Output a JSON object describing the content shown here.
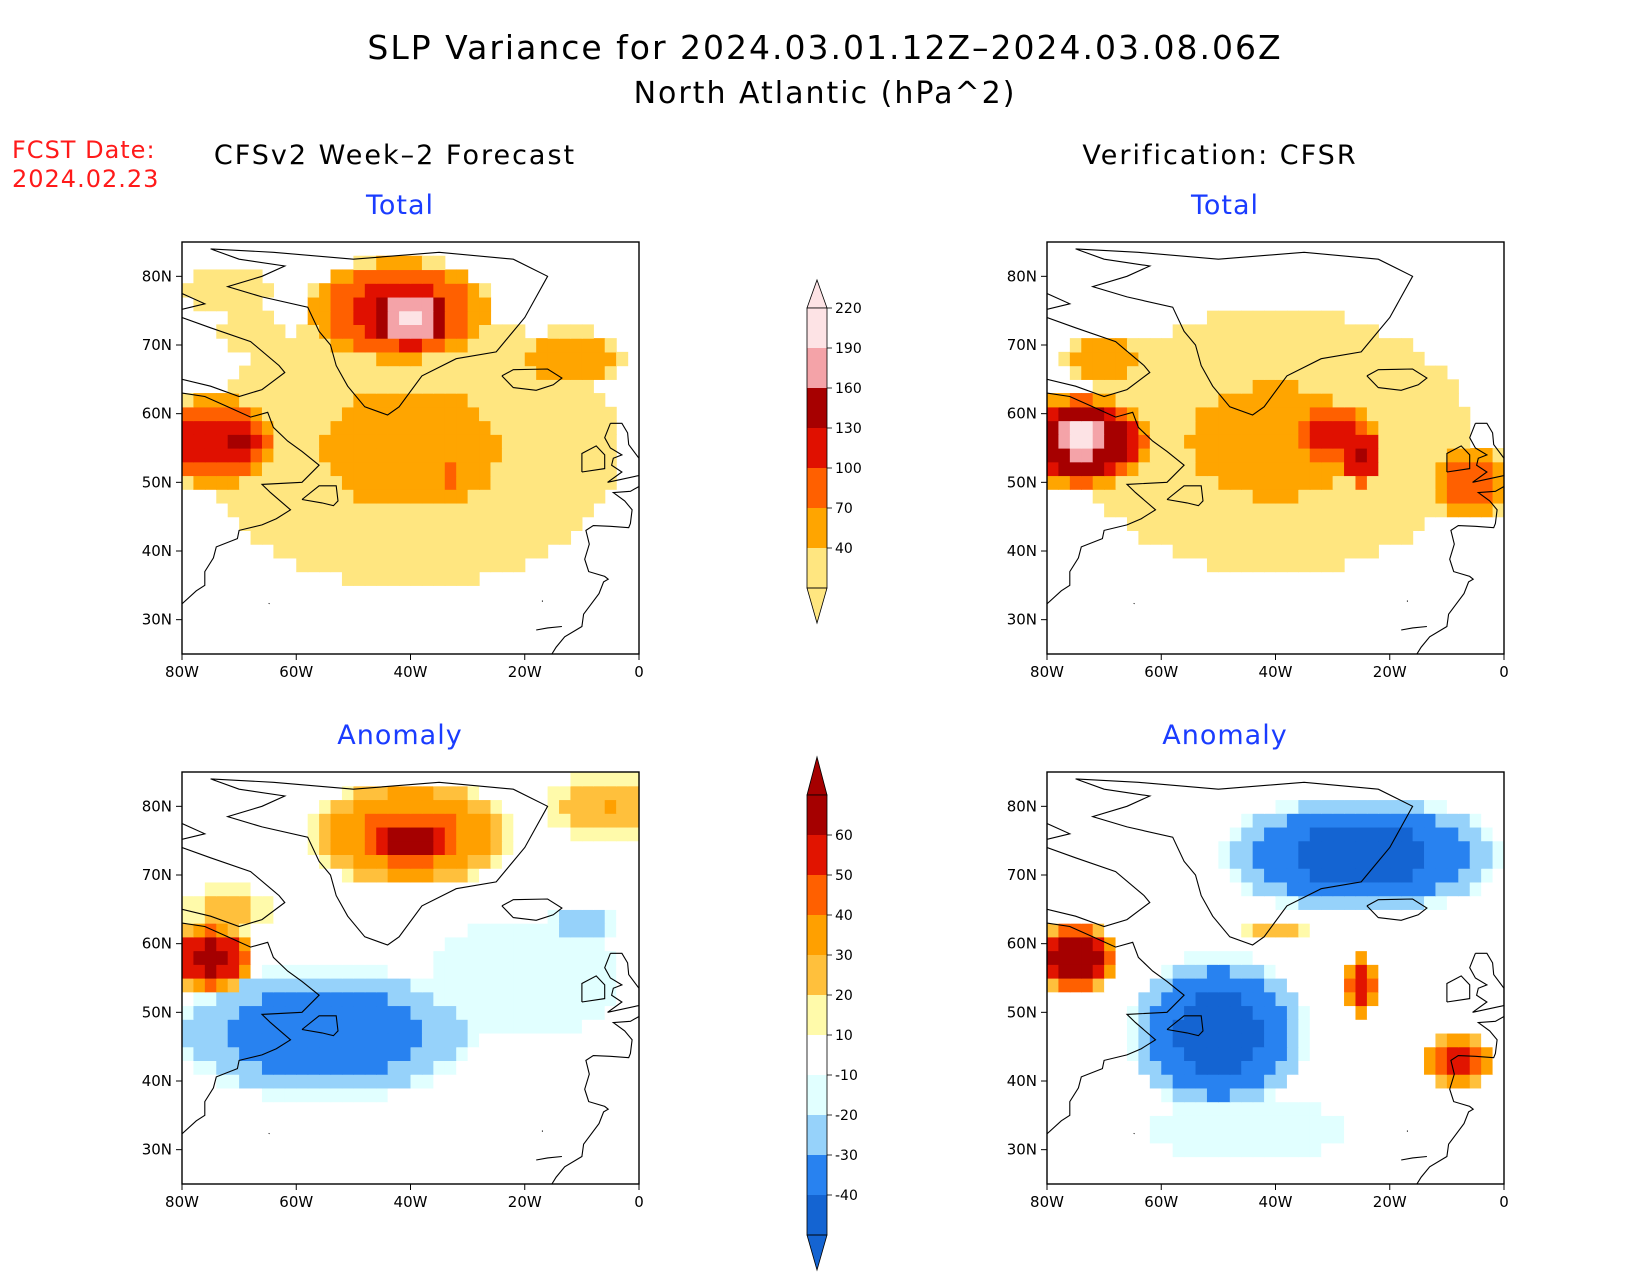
{
  "title": {
    "line1": "SLP Variance for 2024.03.01.12Z–2024.03.08.06Z",
    "line2": "North Atlantic (hPa^2)"
  },
  "fcst_date": {
    "label": "FCST Date:",
    "value": "2024.02.23"
  },
  "columns": {
    "left": "CFSv2 Week–2 Forecast",
    "right": "Verification: CFSR"
  },
  "panels": [
    {
      "id": "fcst-total",
      "title": "Total",
      "scale": "total",
      "blobs": [
        {
          "lon": -40,
          "lat": 55,
          "rx": 42,
          "ry": 23,
          "v": 75
        },
        {
          "lon": -42,
          "lat": 75,
          "rx": 17,
          "ry": 8,
          "v": 150
        },
        {
          "lon": -40,
          "lat": 74,
          "rx": 8,
          "ry": 5,
          "v": 230
        },
        {
          "lon": -74,
          "lat": 56,
          "rx": 12,
          "ry": 7,
          "v": 150
        },
        {
          "lon": -70,
          "lat": 56,
          "rx": 5,
          "ry": 3,
          "v": 180
        },
        {
          "lon": -68,
          "lat": 72,
          "rx": 8,
          "ry": 4,
          "v": 60
        },
        {
          "lon": -33,
          "lat": 51,
          "rx": 9,
          "ry": 4,
          "v": 105
        },
        {
          "lon": -12,
          "lat": 68,
          "rx": 10,
          "ry": 5,
          "v": 95
        },
        {
          "lon": -72,
          "lat": 78,
          "rx": 10,
          "ry": 5,
          "v": 55
        }
      ]
    },
    {
      "id": "verif-total",
      "title": "Total",
      "scale": "total",
      "blobs": [
        {
          "lon": -40,
          "lat": 56,
          "rx": 40,
          "ry": 22,
          "v": 75
        },
        {
          "lon": -25,
          "lat": 76,
          "rx": 20,
          "ry": 7,
          "v": 30
        },
        {
          "lon": -74,
          "lat": 56,
          "rx": 13,
          "ry": 7,
          "v": 200
        },
        {
          "lon": -74,
          "lat": 57,
          "rx": 8,
          "ry": 4,
          "v": 240
        },
        {
          "lon": -30,
          "lat": 57,
          "rx": 10,
          "ry": 5,
          "v": 140
        },
        {
          "lon": -25,
          "lat": 54,
          "rx": 4,
          "ry": 5,
          "v": 165
        },
        {
          "lon": -6,
          "lat": 50,
          "rx": 8,
          "ry": 6,
          "v": 120
        },
        {
          "lon": -70,
          "lat": 68,
          "rx": 8,
          "ry": 4,
          "v": 100
        }
      ]
    },
    {
      "id": "fcst-anom",
      "title": "Anomaly",
      "scale": "anom",
      "blobs": [
        {
          "lon": -40,
          "lat": 76,
          "rx": 18,
          "ry": 8,
          "v": 45
        },
        {
          "lon": -40,
          "lat": 75,
          "rx": 8,
          "ry": 4,
          "v": 70
        },
        {
          "lon": -5,
          "lat": 80,
          "rx": 12,
          "ry": 5,
          "v": 30
        },
        {
          "lon": -75,
          "lat": 58,
          "rx": 8,
          "ry": 5,
          "v": 65
        },
        {
          "lon": -72,
          "lat": 65,
          "rx": 8,
          "ry": 4,
          "v": 25
        },
        {
          "lon": -55,
          "lat": 47,
          "rx": 28,
          "ry": 10,
          "v": -38
        },
        {
          "lon": -20,
          "lat": 55,
          "rx": 18,
          "ry": 10,
          "v": -20
        },
        {
          "lon": -10,
          "lat": 63,
          "rx": 6,
          "ry": 3,
          "v": -32
        }
      ]
    },
    {
      "id": "verif-anom",
      "title": "Anomaly",
      "scale": "anom",
      "blobs": [
        {
          "lon": -25,
          "lat": 73,
          "rx": 25,
          "ry": 9,
          "v": -45
        },
        {
          "lon": -50,
          "lat": 47,
          "rx": 16,
          "ry": 12,
          "v": -45
        },
        {
          "lon": -75,
          "lat": 58,
          "rx": 8,
          "ry": 5,
          "v": 70
        },
        {
          "lon": -25,
          "lat": 54,
          "rx": 3,
          "ry": 5,
          "v": 55
        },
        {
          "lon": -8,
          "lat": 43,
          "rx": 7,
          "ry": 4,
          "v": 55
        },
        {
          "lon": -40,
          "lat": 62,
          "rx": 6,
          "ry": 2,
          "v": 25
        },
        {
          "lon": -45,
          "lat": 33,
          "rx": 22,
          "ry": 6,
          "v": -15
        }
      ]
    }
  ],
  "axes": {
    "lon_range": [
      -80,
      0
    ],
    "lat_range": [
      25,
      85
    ],
    "x_ticks": [
      "80W",
      "60W",
      "40W",
      "20W",
      "0"
    ],
    "y_ticks": [
      "30N",
      "40N",
      "50N",
      "60N",
      "70N",
      "80N"
    ]
  },
  "colorbars": {
    "total": {
      "levels": [
        "40",
        "70",
        "100",
        "130",
        "160",
        "190",
        "220"
      ],
      "colors": [
        "#ffe680",
        "#ffa500",
        "#ff6000",
        "#e01000",
        "#a60000",
        "#f4a3a8",
        "#fde3e5"
      ]
    },
    "anom": {
      "levels": [
        "-40",
        "-30",
        "-20",
        "-10",
        "10",
        "20",
        "30",
        "40",
        "50",
        "60"
      ],
      "colors": [
        "#1464d2",
        "#2882f0",
        "#96d2fa",
        "#e1ffff",
        "#ffffff",
        "#fffaaa",
        "#ffc03c",
        "#ffa000",
        "#ff6000",
        "#e11400",
        "#a50000"
      ]
    }
  },
  "coast_color": "#000000"
}
